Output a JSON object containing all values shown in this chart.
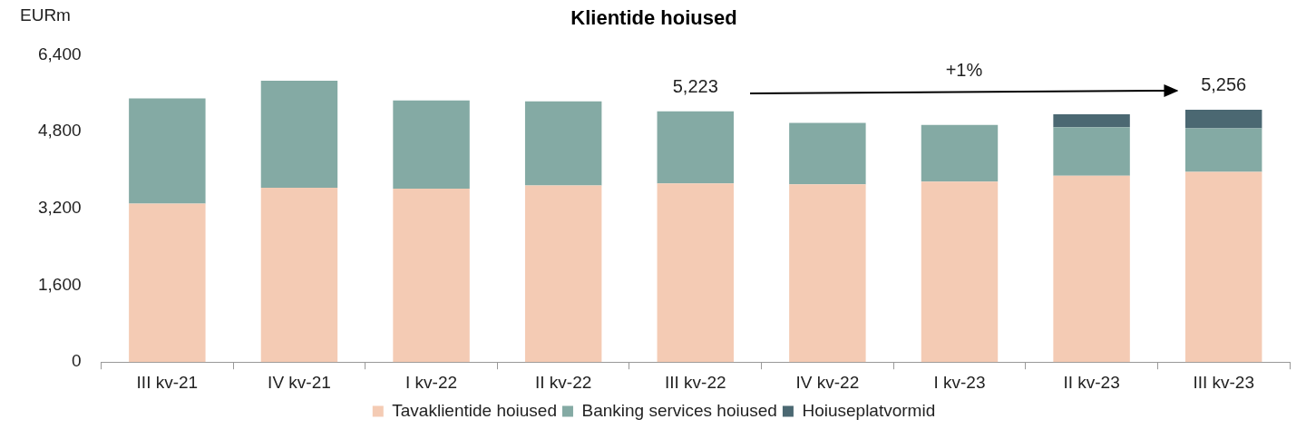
{
  "chart_data": {
    "type": "bar",
    "title": "Klientide hoiused",
    "ylabel": "EURm",
    "categories": [
      "III kv-21",
      "IV kv-21",
      "I kv-22",
      "II kv-22",
      "III kv-22",
      "IV kv-22",
      "I kv-23",
      "II kv-23",
      "III kv-23"
    ],
    "series": [
      {
        "name": "Tavaklientide hoiused",
        "color": "#f4cbb4",
        "values": [
          3300,
          3630,
          3610,
          3680,
          3720,
          3700,
          3760,
          3880,
          3960
        ]
      },
      {
        "name": "Banking services hoiused",
        "color": "#84aaa4",
        "values": [
          2190,
          2230,
          1840,
          1750,
          1503,
          1280,
          1180,
          1010,
          910
        ]
      },
      {
        "name": "Hoiuseplatvormid",
        "color": "#4b6872",
        "values": [
          null,
          null,
          null,
          null,
          null,
          null,
          null,
          270,
          386
        ]
      }
    ],
    "stacked": true,
    "ylim": [
      0,
      6400
    ],
    "yticks": [
      {
        "value": 0,
        "label": "0"
      },
      {
        "value": 1600,
        "label": "1,600"
      },
      {
        "value": 3200,
        "label": "3,200"
      },
      {
        "value": 4800,
        "label": "4,800"
      },
      {
        "value": 6400,
        "label": "6,400"
      }
    ],
    "totals": [
      null,
      null,
      null,
      null,
      "5,223",
      null,
      null,
      null,
      "5,256"
    ],
    "annotations": [
      "+1%"
    ],
    "grid": false,
    "legend": "bottom"
  }
}
